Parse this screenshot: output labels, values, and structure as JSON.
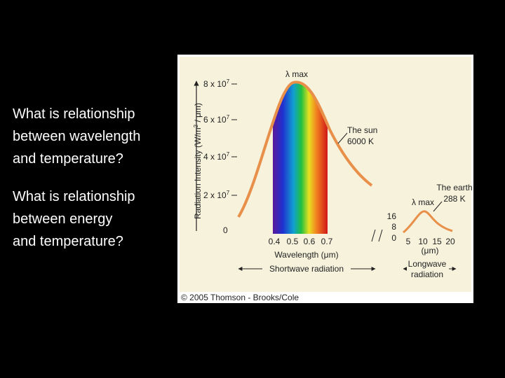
{
  "slide": {
    "questions": [
      [
        "What is relationship",
        "between wavelength",
        "and temperature?"
      ],
      [
        "What is relationship",
        "between energy",
        "and temperature?"
      ]
    ]
  },
  "figure": {
    "y_axis_title": [
      "Radiation Intensity (W/m",
      "2",
      " / μm)"
    ],
    "y_ticks": [
      [
        "8 x 10",
        "7"
      ],
      [
        "6 x 10",
        "7"
      ],
      [
        "4 x 10",
        "7"
      ],
      [
        "2 x 10",
        "7"
      ],
      [
        "0",
        ""
      ]
    ],
    "sun_peak_label": "λ max",
    "sun_label": [
      "The sun",
      "6000 K"
    ],
    "sun_x_ticks": [
      "0.4",
      "0.5",
      "0.6",
      "0.7"
    ],
    "x_axis_title": "Wavelength (μm)",
    "shortwave_label": "Shortwave radiation",
    "earth_y_ticks": [
      "16",
      "8",
      "0"
    ],
    "earth_peak_label": "λ max",
    "earth_label": [
      "The earth",
      "288 K"
    ],
    "earth_x_ticks": [
      "5",
      "10",
      "15",
      "20"
    ],
    "earth_x_unit": "(μm)",
    "longwave_label": [
      "Longwave",
      "radiation"
    ],
    "credit": "© 2005 Thomson - Brooks/Cole"
  }
}
